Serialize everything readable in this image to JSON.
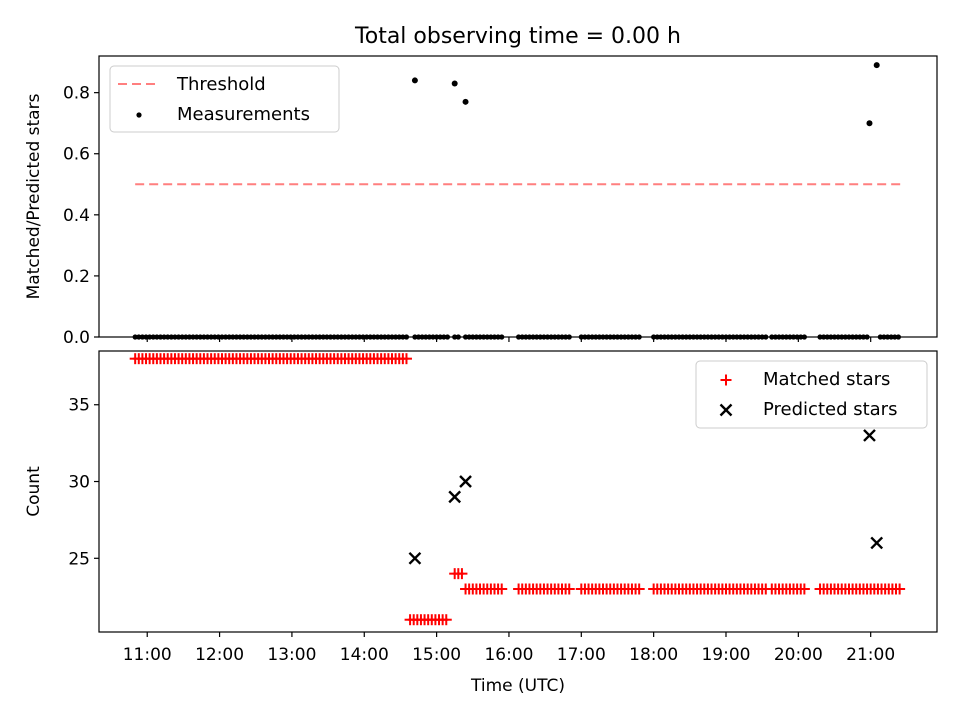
{
  "title": "Total observing time = 0.00 h",
  "chart_data": [
    {
      "type": "scatter",
      "panel": "top",
      "ylabel": "Matched/Predicted stars",
      "xlabel": "",
      "xlim": [
        "10:20",
        "21:55"
      ],
      "ylim": [
        0.0,
        0.92
      ],
      "yticks": [
        0.0,
        0.2,
        0.4,
        0.6,
        0.8
      ],
      "ytick_labels": [
        "0.0",
        "0.2",
        "0.4",
        "0.6",
        "0.8"
      ],
      "legend_position": "upper left",
      "legend": [
        "Threshold",
        "Measurements"
      ],
      "threshold": {
        "name": "Threshold",
        "value": 0.5,
        "x_range": [
          "10:50",
          "21:25"
        ],
        "color": "#ff7f7f",
        "style": "dashed"
      },
      "series": [
        {
          "name": "Measurements",
          "color": "#000000",
          "points": [
            [
              "14:42",
              0.84
            ],
            [
              "15:15",
              0.83
            ],
            [
              "15:24",
              0.77
            ],
            [
              "20:59",
              0.7
            ],
            [
              "21:05",
              0.89
            ]
          ],
          "zero_ranges": [
            [
              "10:50",
              "14:35"
            ],
            [
              "14:42",
              "15:10"
            ],
            [
              "15:15",
              "15:18"
            ],
            [
              "15:24",
              "15:55"
            ],
            [
              "16:08",
              "16:52"
            ],
            [
              "17:00",
              "17:50"
            ],
            [
              "18:00",
              "19:35"
            ],
            [
              "19:38",
              "20:05"
            ],
            [
              "20:18",
              "20:58"
            ],
            [
              "21:08",
              "21:25"
            ]
          ],
          "zero_value": 0.0
        }
      ]
    },
    {
      "type": "scatter",
      "panel": "bottom",
      "ylabel": "Count",
      "xlabel": "Time (UTC)",
      "xlim": [
        "10:20",
        "21:55"
      ],
      "ylim": [
        20.2,
        38.5
      ],
      "yticks": [
        25,
        30,
        35
      ],
      "ytick_labels": [
        "25",
        "30",
        "35"
      ],
      "xticks": [
        "11:00",
        "12:00",
        "13:00",
        "14:00",
        "15:00",
        "16:00",
        "17:00",
        "18:00",
        "19:00",
        "20:00",
        "21:00"
      ],
      "legend_position": "upper right",
      "legend": [
        "Matched stars",
        "Predicted stars"
      ],
      "series": [
        {
          "name": "Matched stars",
          "marker": "plus",
          "color": "#ff0000",
          "segments": [
            {
              "from": "10:50",
              "to": "14:35",
              "value": 38
            },
            {
              "from": "14:38",
              "to": "15:10",
              "value": 21
            },
            {
              "from": "15:15",
              "to": "15:21",
              "value": 24
            },
            {
              "from": "15:24",
              "to": "15:55",
              "value": 23
            },
            {
              "from": "16:08",
              "to": "16:52",
              "value": 23
            },
            {
              "from": "17:00",
              "to": "17:50",
              "value": 23
            },
            {
              "from": "18:00",
              "to": "19:35",
              "value": 23
            },
            {
              "from": "19:38",
              "to": "20:05",
              "value": 23
            },
            {
              "from": "20:18",
              "to": "21:25",
              "value": 23
            }
          ]
        },
        {
          "name": "Predicted stars",
          "marker": "x",
          "color": "#000000",
          "points": [
            [
              "14:42",
              25
            ],
            [
              "15:15",
              29
            ],
            [
              "15:24",
              30
            ],
            [
              "20:59",
              33
            ],
            [
              "21:05",
              26
            ]
          ]
        }
      ]
    }
  ]
}
